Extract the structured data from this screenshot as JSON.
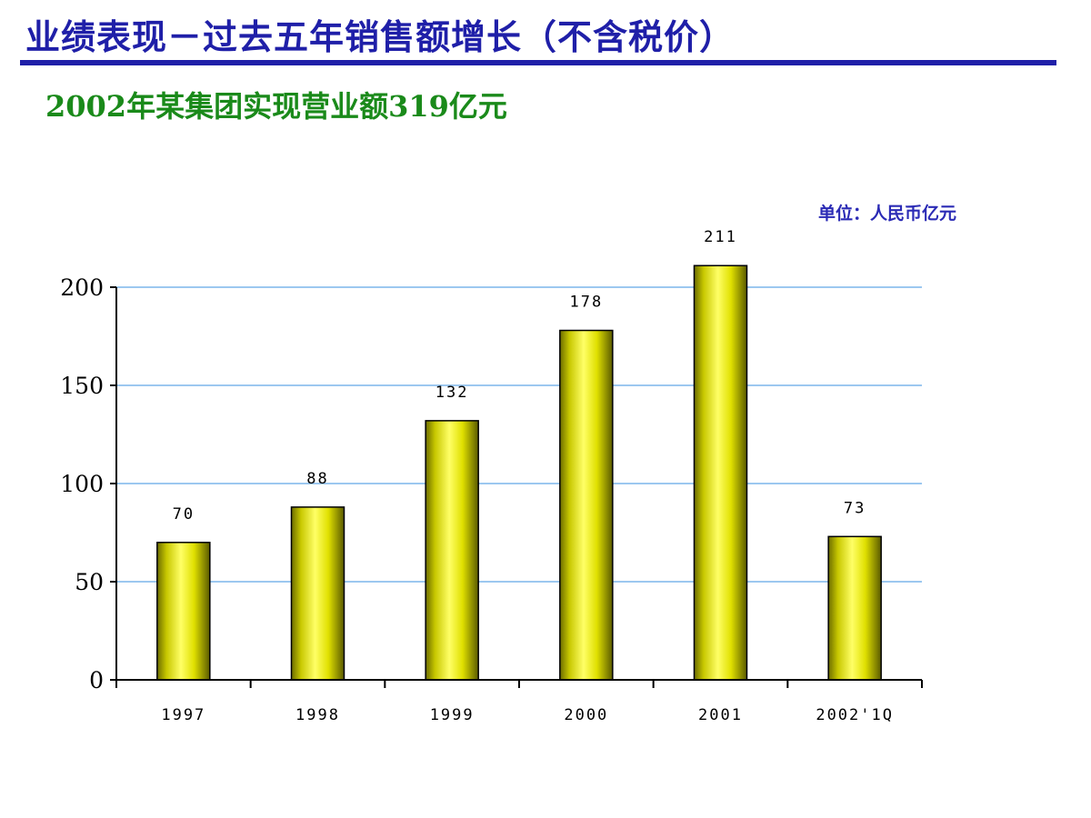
{
  "slide": {
    "title": "业绩表现－过去五年销售额增长（不含税价）",
    "subtitle": "2002年某集团实现营业额319亿元",
    "unit": "单位：人民币亿元"
  },
  "colors": {
    "title": "#1f1fa8",
    "subtitle": "#1a8a1a",
    "bar_fill": "#e6e600",
    "gridline": "#9cc8f0"
  },
  "chart_data": {
    "type": "bar",
    "categories": [
      "1997",
      "1998",
      "1999",
      "2000",
      "2001",
      "2002'1Q"
    ],
    "values": [
      70,
      88,
      132,
      178,
      211,
      73
    ],
    "data_labels": [
      "70",
      "88",
      "132",
      "178",
      "211",
      "73"
    ],
    "y_ticks": [
      "0",
      "50",
      "100",
      "150",
      "200"
    ],
    "ylim": [
      0,
      200
    ],
    "grid": true,
    "legend": "none",
    "title": "",
    "xlabel": "",
    "ylabel": ""
  }
}
